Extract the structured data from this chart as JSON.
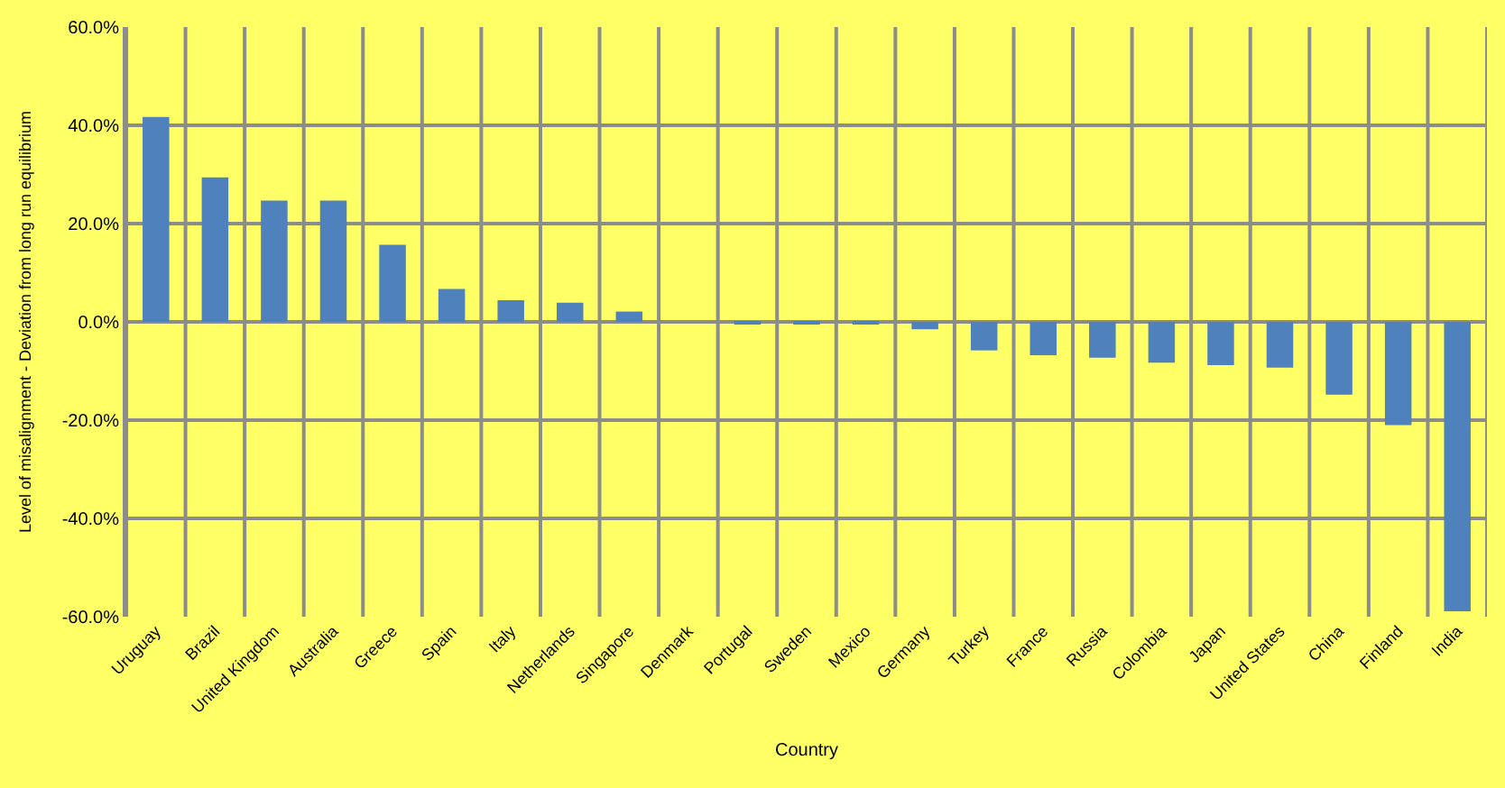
{
  "chart_data": {
    "type": "bar",
    "xlabel": "Country",
    "ylabel": "Level of misalignment - Deviation from long run equilibrium",
    "categories": [
      "Uruguay",
      "Brazil",
      "United Kingdom",
      "Australia",
      "Greece",
      "Spain",
      "Italy",
      "Netherlands",
      "Singapore",
      "Denmark",
      "Portugal",
      "Sweden",
      "Mexico",
      "Germany",
      "Turkey",
      "France",
      "Russia",
      "Colombia",
      "Japan",
      "United States",
      "China",
      "Finland",
      "India"
    ],
    "values": [
      41.7,
      29.4,
      24.7,
      24.7,
      15.7,
      6.7,
      4.4,
      3.9,
      2.1,
      0,
      -0.5,
      -0.5,
      -0.5,
      -1.5,
      -5.8,
      -6.8,
      -7.3,
      -8.3,
      -8.8,
      -9.3,
      -14.8,
      -21,
      -58.9
    ],
    "color": "#4f81bd",
    "ylim": [
      -60,
      60
    ],
    "yticks": [
      {
        "value": -60,
        "label": "-60.0%"
      },
      {
        "value": -40,
        "label": "-40.0%"
      },
      {
        "value": -20,
        "label": "-20.0%"
      },
      {
        "value": 0,
        "label": "0.0%"
      },
      {
        "value": 20,
        "label": "20.0%"
      },
      {
        "value": 40,
        "label": "40.0%"
      },
      {
        "value": 60,
        "label": "60.0%"
      }
    ],
    "grid": true
  }
}
